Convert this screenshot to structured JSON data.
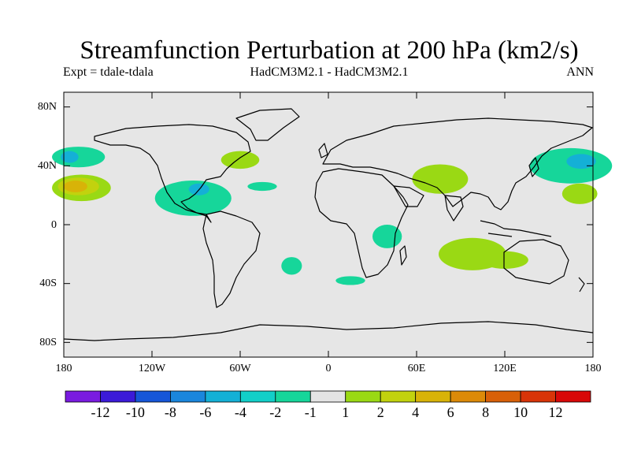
{
  "title": "Streamfunction Perturbation at 200 hPa (km2/s)",
  "experiment": "Expt = tdale-tdala",
  "models": "HadCM3M2.1 - HadCM3M2.1",
  "season": "ANN",
  "colors": {
    "ocean": "#e6e6e6",
    "land_outline": "#000000"
  },
  "y_axis": {
    "ticks": [
      "80N",
      "40N",
      "0",
      "40S",
      "80S"
    ],
    "values": [
      80,
      40,
      0,
      -40,
      -80
    ],
    "range": [
      -90,
      90
    ]
  },
  "x_axis": {
    "ticks": [
      "180",
      "120W",
      "60W",
      "0",
      "60E",
      "120E",
      "180"
    ],
    "values": [
      -180,
      -120,
      -60,
      0,
      60,
      120,
      180
    ],
    "range": [
      -180,
      180
    ]
  },
  "colorbar": {
    "colors": [
      "#7a1be0",
      "#3b1ad8",
      "#1656d8",
      "#1a86dc",
      "#14b0d6",
      "#12cfc8",
      "#16d69a",
      "#e4e4e4",
      "#9ad914",
      "#c2d20e",
      "#d8b308",
      "#dc8a08",
      "#d86008",
      "#d83408",
      "#d80808"
    ],
    "labels": [
      "-12",
      "-10",
      "-8",
      "-6",
      "-4",
      "-2",
      "-1",
      "1",
      "2",
      "4",
      "6",
      "8",
      "10",
      "12"
    ]
  },
  "anomaly_regions": [
    {
      "level": "-2",
      "color": "#16d69a",
      "lon": -170,
      "lat": 46,
      "rlon": 18,
      "rlat": 7
    },
    {
      "level": "-4",
      "color": "#14b0d6",
      "lon": -176,
      "lat": 46,
      "rlon": 6,
      "rlat": 4
    },
    {
      "level": "2",
      "color": "#9ad914",
      "lon": -168,
      "lat": 25,
      "rlon": 20,
      "rlat": 9
    },
    {
      "level": "4",
      "color": "#c2d20e",
      "lon": -170,
      "lat": 26,
      "rlon": 14,
      "rlat": 6
    },
    {
      "level": "6",
      "color": "#d8b308",
      "lon": -172,
      "lat": 26,
      "rlon": 8,
      "rlat": 4
    },
    {
      "level": "-2",
      "color": "#16d69a",
      "lon": -92,
      "lat": 18,
      "rlon": 26,
      "rlat": 12
    },
    {
      "level": "-4",
      "color": "#14b0d6",
      "lon": -88,
      "lat": 24,
      "rlon": 7,
      "rlat": 4
    },
    {
      "level": "2",
      "color": "#9ad914",
      "lon": -60,
      "lat": 44,
      "rlon": 13,
      "rlat": 6
    },
    {
      "level": "-2",
      "color": "#16d69a",
      "lon": -45,
      "lat": 26,
      "rlon": 10,
      "rlat": 3
    },
    {
      "level": "2",
      "color": "#9ad914",
      "lon": 76,
      "lat": 31,
      "rlon": 19,
      "rlat": 10
    },
    {
      "level": "-2",
      "color": "#16d69a",
      "lon": 165,
      "lat": 40,
      "rlon": 28,
      "rlat": 12
    },
    {
      "level": "-4",
      "color": "#14b0d6",
      "lon": 172,
      "lat": 43,
      "rlon": 10,
      "rlat": 5
    },
    {
      "level": "2",
      "color": "#9ad914",
      "lon": 171,
      "lat": 21,
      "rlon": 12,
      "rlat": 7
    },
    {
      "level": "-2",
      "color": "#16d69a",
      "lon": 40,
      "lat": -8,
      "rlon": 10,
      "rlat": 8
    },
    {
      "level": "-2",
      "color": "#16d69a",
      "lon": -25,
      "lat": -28,
      "rlon": 7,
      "rlat": 6
    },
    {
      "level": "-2",
      "color": "#16d69a",
      "lon": 15,
      "lat": -38,
      "rlon": 10,
      "rlat": 3
    },
    {
      "level": "2",
      "color": "#9ad914",
      "lon": 98,
      "lat": -20,
      "rlon": 23,
      "rlat": 11
    },
    {
      "level": "2",
      "color": "#9ad914",
      "lon": 120,
      "lat": -24,
      "rlon": 16,
      "rlat": 6
    }
  ]
}
